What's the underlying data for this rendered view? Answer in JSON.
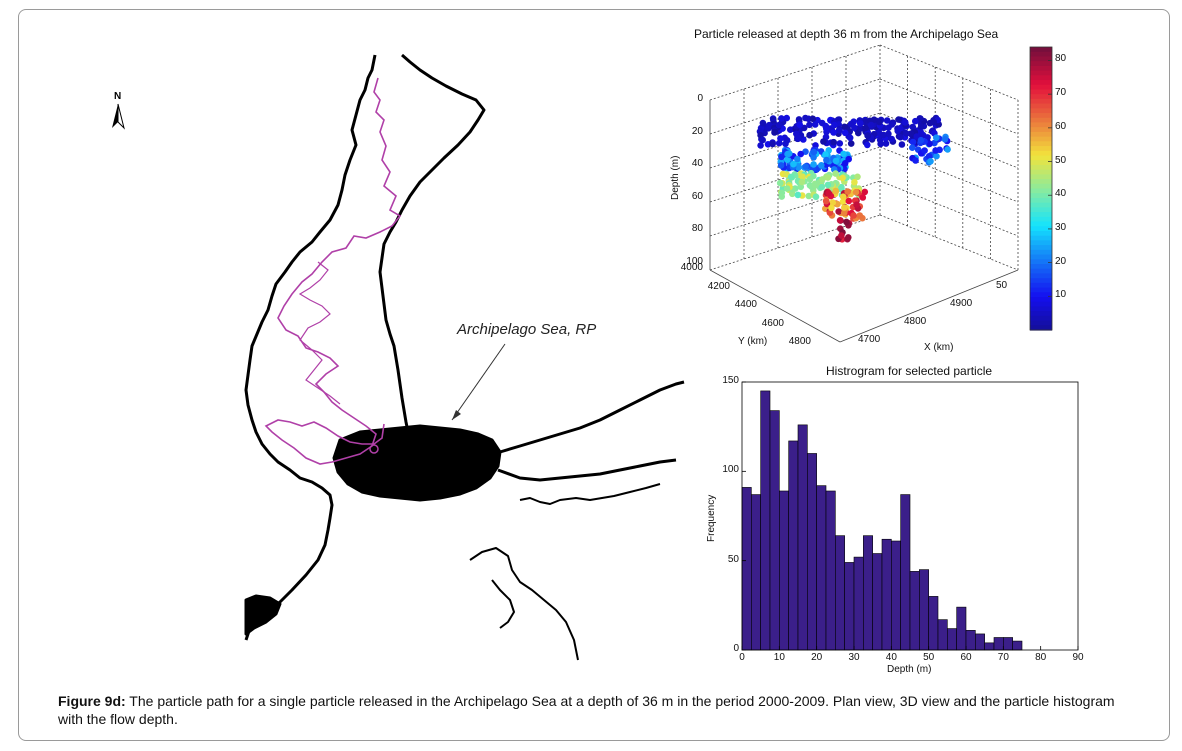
{
  "caption": {
    "label": "Figure 9d:",
    "text": " The particle path for a single particle released in the Archipelago Sea at a depth of 36 m in the period 2000-2009. Plan view, 3D view and the particle histogram with the flow depth."
  },
  "map": {
    "north_label": "N",
    "annotation": "Archipelago Sea, RP",
    "path_color": "#b040a8",
    "land_color": "#000000"
  },
  "chart_data": [
    {
      "type": "scatter",
      "title": "Particle released at depth 36 m from the Archipelago Sea",
      "xlabel": "X (km)",
      "ylabel": "Y (km)",
      "zlabel": "Depth (m)",
      "x_ticks": [
        "4700",
        "4800",
        "4900",
        "50"
      ],
      "y_ticks": [
        "4000",
        "4200",
        "4400",
        "4600",
        "4800"
      ],
      "z_ticks": [
        "0",
        "20",
        "40",
        "60",
        "80",
        "100"
      ],
      "colorbar_ticks": [
        "10",
        "20",
        "30",
        "40",
        "50",
        "60",
        "70",
        "80"
      ],
      "colorbar_range": [
        0,
        84
      ]
    },
    {
      "type": "bar",
      "title": "Histrogram for selected particle",
      "xlabel": "Depth (m)",
      "ylabel": "Frequency",
      "bar_color": "#3b1f8a",
      "bin_width": 2.5,
      "x_start": 0,
      "xlim": [
        0,
        90
      ],
      "ylim": [
        0,
        150
      ],
      "x_ticks": [
        "0",
        "10",
        "20",
        "30",
        "40",
        "50",
        "60",
        "70",
        "80",
        "90"
      ],
      "y_ticks": [
        "0",
        "50",
        "100",
        "150"
      ],
      "values": [
        91,
        87,
        145,
        134,
        89,
        117,
        126,
        110,
        92,
        89,
        64,
        49,
        52,
        64,
        54,
        62,
        61,
        87,
        44,
        45,
        30,
        17,
        12,
        24,
        11,
        9,
        4,
        7,
        7,
        5
      ]
    }
  ]
}
